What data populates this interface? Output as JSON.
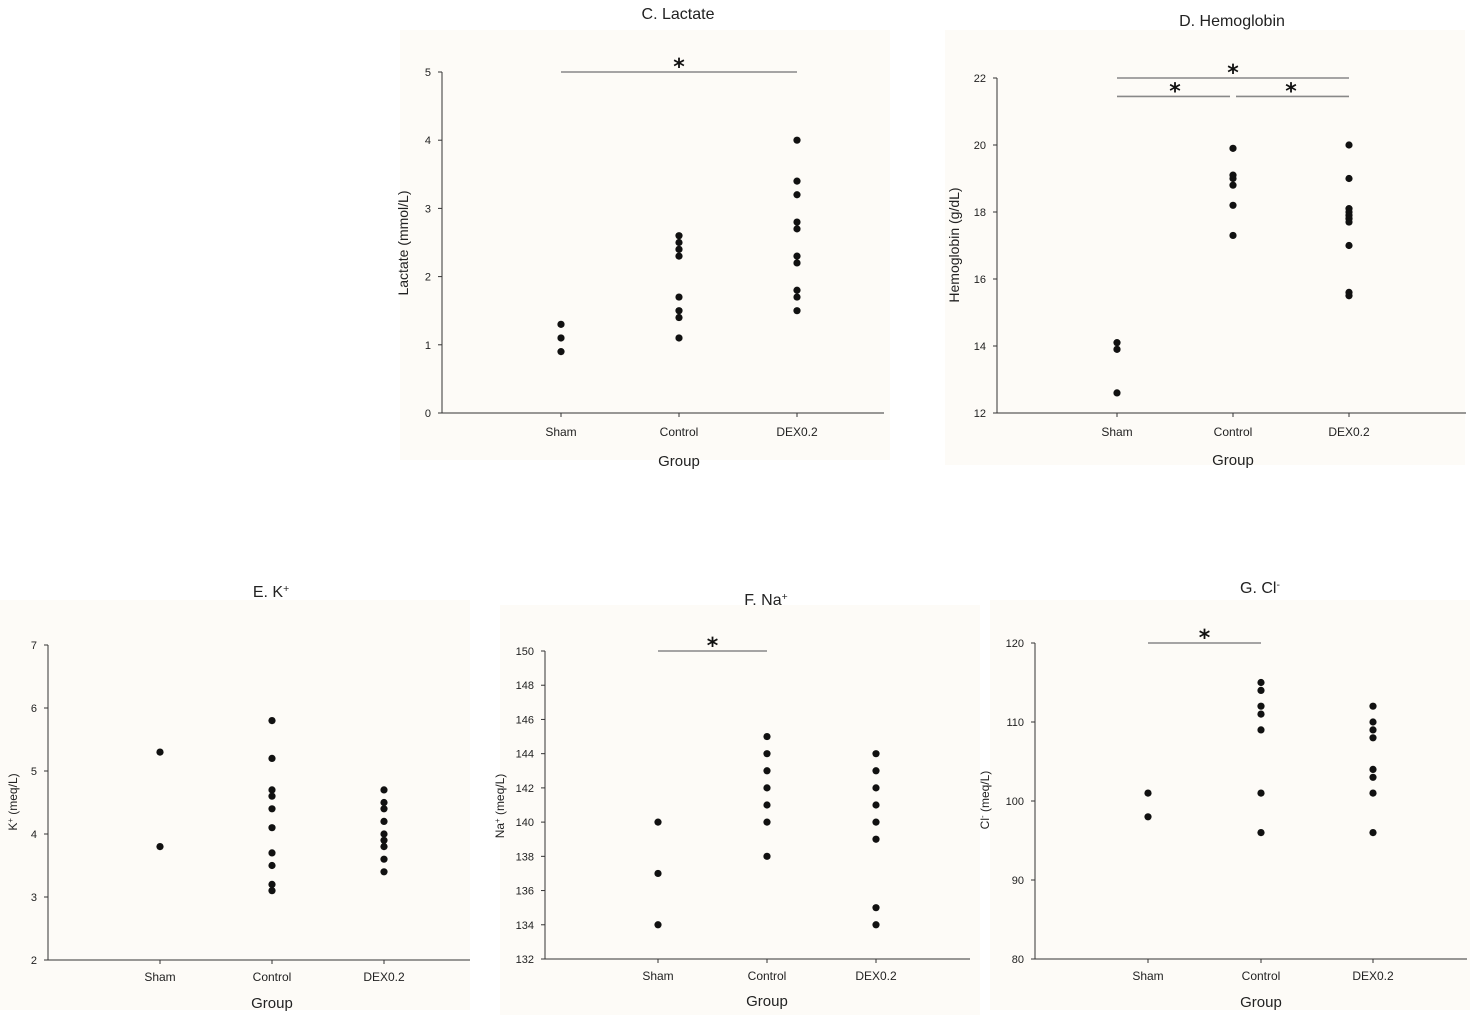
{
  "chart_data": [
    {
      "id": "lactate",
      "type": "scatter",
      "title_main": "C. Lactate",
      "title_sup": "",
      "ylabel_main": "Lactate (mmol/L)",
      "ylabel_sup": "",
      "xlabel": "Group",
      "categories": [
        "Sham",
        "Control",
        "DEX0.2"
      ],
      "ylim": [
        0,
        5
      ],
      "yticks": [
        0,
        1,
        2,
        3,
        4,
        5
      ],
      "points": [
        [
          1.3,
          1.1,
          0.9
        ],
        [
          2.6,
          2.5,
          2.4,
          2.3,
          1.7,
          1.5,
          1.4,
          1.1
        ],
        [
          4.0,
          3.4,
          3.2,
          2.8,
          2.7,
          2.3,
          2.2,
          1.8,
          1.7,
          1.5
        ]
      ],
      "significance": [
        {
          "from": 0,
          "to": 2,
          "y": 5.0,
          "label": "*"
        }
      ]
    },
    {
      "id": "hemoglobin",
      "type": "scatter",
      "title_main": "D. Hemoglobin",
      "title_sup": "",
      "ylabel_main": "Hemoglobin (g/dL)",
      "ylabel_sup": "",
      "xlabel": "Group",
      "categories": [
        "Sham",
        "Control",
        "DEX0.2"
      ],
      "ylim": [
        12,
        22
      ],
      "yticks": [
        12,
        14,
        16,
        18,
        20,
        22
      ],
      "points": [
        [
          14.1,
          13.9,
          12.6
        ],
        [
          19.9,
          19.1,
          19.0,
          18.8,
          18.2,
          17.3
        ],
        [
          20.0,
          19.0,
          18.1,
          18.0,
          17.9,
          17.8,
          17.7,
          17.0,
          15.6,
          15.5
        ]
      ],
      "significance": [
        {
          "from": 0,
          "to": 2,
          "y": 22.0,
          "label": "*"
        },
        {
          "from": 0,
          "to": 1,
          "y": 21.45,
          "label": "*"
        },
        {
          "from": 1,
          "to": 2,
          "y": 21.45,
          "label": "*"
        }
      ]
    },
    {
      "id": "potassium",
      "type": "scatter",
      "title_main": "E. K",
      "title_sup": "+",
      "ylabel_main": "K",
      "ylabel_sup": "+",
      "ylabel_rest": " (meq/L)",
      "xlabel": "Group",
      "categories": [
        "Sham",
        "Control",
        "DEX0.2"
      ],
      "ylim": [
        2,
        7
      ],
      "yticks": [
        2,
        3,
        4,
        5,
        6,
        7
      ],
      "points": [
        [
          5.3,
          3.8
        ],
        [
          5.8,
          5.2,
          4.7,
          4.6,
          4.4,
          4.1,
          3.7,
          3.5,
          3.2,
          3.1
        ],
        [
          4.7,
          4.5,
          4.4,
          4.2,
          4.0,
          3.9,
          3.8,
          3.6,
          3.4
        ]
      ],
      "significance": []
    },
    {
      "id": "sodium",
      "type": "scatter",
      "title_main": "F. Na",
      "title_sup": "+",
      "ylabel_main": "Na",
      "ylabel_sup": "+",
      "ylabel_rest": " (meq/L)",
      "xlabel": "Group",
      "categories": [
        "Sham",
        "Control",
        "DEX0.2"
      ],
      "ylim": [
        132,
        150
      ],
      "yticks": [
        132,
        134,
        136,
        138,
        140,
        142,
        144,
        146,
        148,
        150
      ],
      "points": [
        [
          140,
          137,
          134
        ],
        [
          145,
          144,
          143,
          142,
          141,
          140,
          138
        ],
        [
          144,
          143,
          142,
          141,
          140,
          139,
          135,
          134
        ]
      ],
      "significance": [
        {
          "from": 0,
          "to": 1,
          "y": 150,
          "label": "*"
        }
      ]
    },
    {
      "id": "chloride",
      "type": "scatter",
      "title_main": "G. Cl",
      "title_sup": "-",
      "ylabel_main": "Cl",
      "ylabel_sup": "-",
      "ylabel_rest": " (meq/L)",
      "xlabel": "Group",
      "categories": [
        "Sham",
        "Control",
        "DEX0.2"
      ],
      "ylim": [
        80,
        120
      ],
      "yticks": [
        80,
        90,
        100,
        110,
        120
      ],
      "points": [
        [
          101,
          98
        ],
        [
          115,
          114,
          112,
          111,
          109,
          101,
          96
        ],
        [
          112,
          110,
          109,
          108,
          104,
          103,
          101,
          96
        ]
      ],
      "significance": [
        {
          "from": 0,
          "to": 1,
          "y": 120,
          "label": "*"
        }
      ]
    }
  ]
}
